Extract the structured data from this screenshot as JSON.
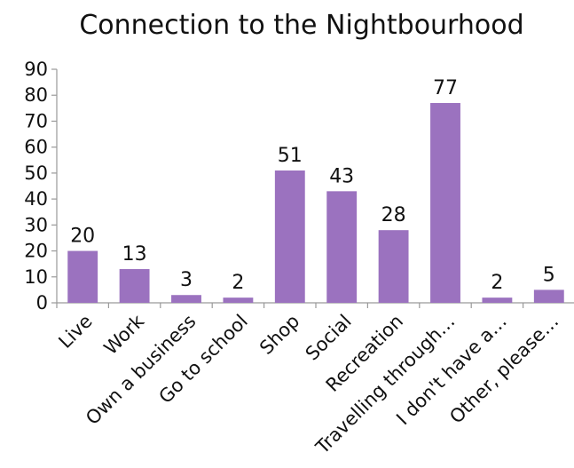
{
  "chart_data": {
    "type": "bar",
    "title": "Connection to the Nightbourhood",
    "categories": [
      "Live",
      "Work",
      "Own a business",
      "Go to school",
      "Shop",
      "Social",
      "Recreation",
      "Travelling through…",
      "I don't have a…",
      "Other, please…"
    ],
    "values": [
      20,
      13,
      3,
      2,
      51,
      43,
      28,
      77,
      2,
      5
    ],
    "ylim": [
      0,
      90
    ],
    "yticks": [
      0,
      10,
      20,
      30,
      40,
      50,
      60,
      70,
      80,
      90
    ],
    "xlabel": "",
    "ylabel": "",
    "grid": false,
    "legend": "none",
    "bar_color": "#9b72bf",
    "data_labels": true
  }
}
